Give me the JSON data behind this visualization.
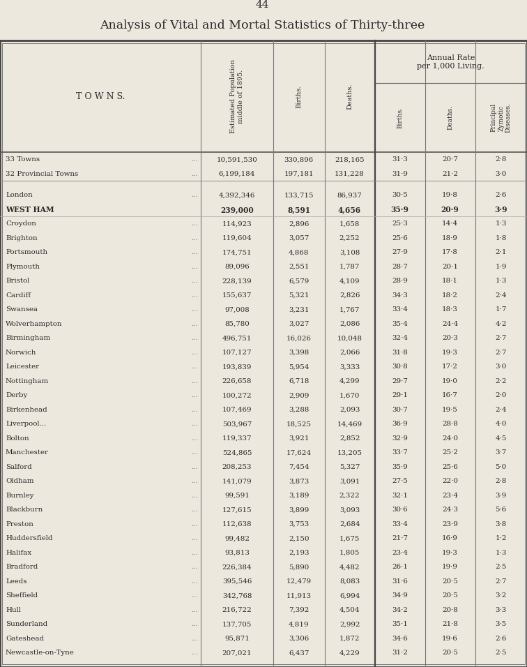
{
  "page_number": "44",
  "title": "Analysis of Vital and Mortal Statistics of Thirty-three",
  "bg_color": "#EDE8DE",
  "text_color": "#2a2a2a",
  "header_rows": [
    {
      "town": "33 Towns",
      "suffix": "   ...   ...   ...",
      "pop": "10,591,530",
      "births": "330,896",
      "deaths": "218,165",
      "birth_rate": "31·3",
      "death_rate": "20·7",
      "zymotic": "2·8",
      "bold": false
    },
    {
      "town": "32 Provincial Towns",
      "suffix": "   ...   ...",
      "pop": "6,199,184",
      "births": "197,181",
      "deaths": "131,228",
      "birth_rate": "31·9",
      "death_rate": "21·2",
      "zymotic": "3·0",
      "bold": false
    }
  ],
  "data_rows": [
    {
      "town": "London",
      "suffix": "   ...   ...   ...   ...",
      "pop": "4,392,346",
      "births": "133,715",
      "deaths": "86,937",
      "birth_rate": "30·5",
      "death_rate": "19·8",
      "zymotic": "2·6",
      "bold": false
    },
    {
      "town": "WEST HAM",
      "suffix": "   ...   ...   ...",
      "pop": "239,000",
      "births": "8,591",
      "deaths": "4,656",
      "birth_rate": "35·9",
      "death_rate": "20·9",
      "zymotic": "3·9",
      "bold": true
    },
    {
      "town": "Croydon",
      "suffix": "   ...   ...   ...   ...",
      "pop": "114,923",
      "births": "2,896",
      "deaths": "1,658",
      "birth_rate": "25·3",
      "death_rate": "14·4",
      "zymotic": "1·3",
      "bold": false
    },
    {
      "town": "Brighton",
      "suffix": "   ...   ...   ...   ...",
      "pop": "119,604",
      "births": "3,057",
      "deaths": "2,252",
      "birth_rate": "25·6",
      "death_rate": "18·9",
      "zymotic": "1·8",
      "bold": false
    },
    {
      "town": "Portsmouth",
      "suffix": "   ...   ...   ...",
      "pop": "174,751",
      "births": "4,868",
      "deaths": "3,108",
      "birth_rate": "27·9",
      "death_rate": "17·8",
      "zymotic": "2·1",
      "bold": false
    },
    {
      "town": "Plymouth",
      "suffix": "   ...   ...   ...   ...",
      "pop": "89,096",
      "births": "2,551",
      "deaths": "1,787",
      "birth_rate": "28·7",
      "death_rate": "20·1",
      "zymotic": "1·9",
      "bold": false
    },
    {
      "town": "Bristol",
      "suffix": "   ...   ...   ...   ...",
      "pop": "228,139",
      "births": "6,579",
      "deaths": "4,109",
      "birth_rate": "28·9",
      "death_rate": "18·1",
      "zymotic": "1·3",
      "bold": false
    },
    {
      "town": "Cardiff",
      "suffix": "   ...   ...   ...   ...",
      "pop": "155,637",
      "births": "5,321",
      "deaths": "2,826",
      "birth_rate": "34·3",
      "death_rate": "18·2",
      "zymotic": "2·4",
      "bold": false
    },
    {
      "town": "Swansea",
      "suffix": "   ...   ...   ...   ...",
      "pop": "97,008",
      "births": "3,231",
      "deaths": "1,767",
      "birth_rate": "33·4",
      "death_rate": "18·3",
      "zymotic": "1·7",
      "bold": false
    },
    {
      "town": "Wolverhampton",
      "suffix": "   ...   ...   ...",
      "pop": "85,780",
      "births": "3,027",
      "deaths": "2,086",
      "birth_rate": "35·4",
      "death_rate": "24·4",
      "zymotic": "4·2",
      "bold": false
    },
    {
      "town": "Birmingham",
      "suffix": "   ...   ...   ...",
      "pop": "496,751",
      "births": "16,026",
      "deaths": "10,048",
      "birth_rate": "32·4",
      "death_rate": "20·3",
      "zymotic": "2·7",
      "bold": false
    },
    {
      "town": "Norwich",
      "suffix": "   ...   ...   ...   ...",
      "pop": "107,127",
      "births": "3,398",
      "deaths": "2,066",
      "birth_rate": "31·8",
      "death_rate": "19·3",
      "zymotic": "2·7",
      "bold": false
    },
    {
      "town": "Leicester",
      "suffix": "   ...   ...   ...",
      "pop": "193,839",
      "births": "5,954",
      "deaths": "3,333",
      "birth_rate": "30·8",
      "death_rate": "17·2",
      "zymotic": "3·0",
      "bold": false
    },
    {
      "town": "Nottingham",
      "suffix": "   ...   ...   ...",
      "pop": "226,658",
      "births": "6,718",
      "deaths": "4,299",
      "birth_rate": "29·7",
      "death_rate": "19·0",
      "zymotic": "2·2",
      "bold": false
    },
    {
      "town": "Derby",
      "suffix": "   ...   ...   ...   ...",
      "pop": "100,272",
      "births": "2,909",
      "deaths": "1,670",
      "birth_rate": "29·1",
      "death_rate": "16·7",
      "zymotic": "2·0",
      "bold": false
    },
    {
      "town": "Birkenhead",
      "suffix": "   ...   ...   ...",
      "pop": "107,469",
      "births": "3,288",
      "deaths": "2,093",
      "birth_rate": "30·7",
      "death_rate": "19·5",
      "zymotic": "2·4",
      "bold": false
    },
    {
      "town": "Liverpool...",
      "suffix": "   ...   ...   ...",
      "pop": "503,967",
      "births": "18,525",
      "deaths": "14,469",
      "birth_rate": "36·9",
      "death_rate": "28·8",
      "zymotic": "4·0",
      "bold": false
    },
    {
      "town": "Bolton",
      "suffix": "   ...   ...   ...   ...",
      "pop": "119,337",
      "births": "3,921",
      "deaths": "2,852",
      "birth_rate": "32·9",
      "death_rate": "24·0",
      "zymotic": "4·5",
      "bold": false
    },
    {
      "town": "Manchester",
      "suffix": "   ...   ...   ...",
      "pop": "524,865",
      "births": "17,624",
      "deaths": "13,205",
      "birth_rate": "33·7",
      "death_rate": "25·2",
      "zymotic": "3·7",
      "bold": false
    },
    {
      "town": "Salford",
      "suffix": "   ...   ...   ...   ...",
      "pop": "208,253",
      "births": "7,454",
      "deaths": "5,327",
      "birth_rate": "35·9",
      "death_rate": "25·6",
      "zymotic": "5·0",
      "bold": false
    },
    {
      "town": "Oldham",
      "suffix": "   ...   ...   ...   ...",
      "pop": "141,079",
      "births": "3,873",
      "deaths": "3,091",
      "birth_rate": "27·5",
      "death_rate": "22·0",
      "zymotic": "2·8",
      "bold": false
    },
    {
      "town": "Burnley",
      "suffix": "   ...   ...   ...   ...",
      "pop": "99,591",
      "births": "3,189",
      "deaths": "2,322",
      "birth_rate": "32·1",
      "death_rate": "23·4",
      "zymotic": "3·9",
      "bold": false
    },
    {
      "town": "Blackburn",
      "suffix": "   ...   ...   ...",
      "pop": "127,615",
      "births": "3,899",
      "deaths": "3,093",
      "birth_rate": "30·6",
      "death_rate": "24·3",
      "zymotic": "5·6",
      "bold": false
    },
    {
      "town": "Preston",
      "suffix": "   ...   ...   ...   ...",
      "pop": "112,638",
      "births": "3,753",
      "deaths": "2,684",
      "birth_rate": "33·4",
      "death_rate": "23·9",
      "zymotic": "3·8",
      "bold": false
    },
    {
      "town": "Huddersfield",
      "suffix": "   ...   ...   ...",
      "pop": "99,482",
      "births": "2,150",
      "deaths": "1,675",
      "birth_rate": "21·7",
      "death_rate": "16·9",
      "zymotic": "1·2",
      "bold": false
    },
    {
      "town": "Halifax",
      "suffix": "   ...   ...   ...   ...",
      "pop": "93,813",
      "births": "2,193",
      "deaths": "1,805",
      "birth_rate": "23·4",
      "death_rate": "19·3",
      "zymotic": "1·3",
      "bold": false
    },
    {
      "town": "Bradford",
      "suffix": "   ...   ...   ...   ...",
      "pop": "226,384",
      "births": "5,890",
      "deaths": "4,482",
      "birth_rate": "26·1",
      "death_rate": "19·9",
      "zymotic": "2·5",
      "bold": false
    },
    {
      "town": "Leeds",
      "suffix": "   ...   ...   ...   ...",
      "pop": "395,546",
      "births": "12,479",
      "deaths": "8,083",
      "birth_rate": "31·6",
      "death_rate": "20·5",
      "zymotic": "2·7",
      "bold": false
    },
    {
      "town": "Sheffield",
      "suffix": "   ...   ...   ...",
      "pop": "342,768",
      "births": "11,913",
      "deaths": "6,994",
      "birth_rate": "34·9",
      "death_rate": "20·5",
      "zymotic": "3·2",
      "bold": false
    },
    {
      "town": "Hull",
      "suffix": "   ...   ...   ...   ...",
      "pop": "216,722",
      "births": "7,392",
      "deaths": "4,504",
      "birth_rate": "34·2",
      "death_rate": "20·8",
      "zymotic": "3·3",
      "bold": false
    },
    {
      "town": "Sunderland",
      "suffix": "   ...   ...   ...",
      "pop": "137,705",
      "births": "4,819",
      "deaths": "2,992",
      "birth_rate": "35·1",
      "death_rate": "21·8",
      "zymotic": "3·5",
      "bold": false
    },
    {
      "town": "Gateshead",
      "suffix": "   ...   ...   ...   ...",
      "pop": "95,871",
      "births": "3,306",
      "deaths": "1,872",
      "birth_rate": "34·6",
      "death_rate": "19·6",
      "zymotic": "2·6",
      "bold": false
    },
    {
      "town": "Newcastle-on-Tyne",
      "suffix": "   ...   ...",
      "pop": "207,021",
      "births": "6,437",
      "deaths": "4,229",
      "birth_rate": "31·2",
      "death_rate": "20·5",
      "zymotic": "2·5",
      "bold": false
    }
  ]
}
